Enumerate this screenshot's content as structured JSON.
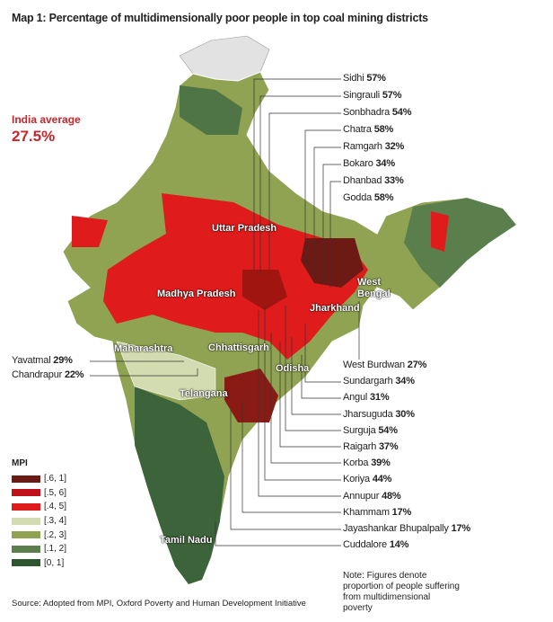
{
  "title": "Map 1: Percentage of multidimensionally poor people in top coal mining districts",
  "india_average": {
    "label": "India average",
    "value": "27.5%"
  },
  "legend": {
    "title": "MPI",
    "items": [
      {
        "label": "[.6, 1]",
        "color": "#6e1a14"
      },
      {
        "label": "[.5, 6]",
        "color": "#c0111a"
      },
      {
        "label": "[.4, 5]",
        "color": "#e01b1b"
      },
      {
        "label": "[.3, 4]",
        "color": "#d3dcb0"
      },
      {
        "label": "[.2, 3]",
        "color": "#8fa352"
      },
      {
        "label": "[.1, 2]",
        "color": "#5a7f4c"
      },
      {
        "label": "[0, 1]",
        "color": "#2f5430"
      }
    ]
  },
  "states": [
    "Uttar Pradesh",
    "Madhya Pradesh",
    "Maharashtra",
    "Chhattisgarh",
    "Odisha",
    "Telangana",
    "Tamil Nadu",
    "West Bengal",
    "Jharkhand"
  ],
  "districts_upper": [
    {
      "name": "Sidhi",
      "value": "57%"
    },
    {
      "name": "Singrauli",
      "value": "57%"
    },
    {
      "name": "Sonbhadra",
      "value": "54%"
    },
    {
      "name": "Chatra",
      "value": "58%"
    },
    {
      "name": "Ramgarh",
      "value": "32%"
    },
    {
      "name": "Bokaro",
      "value": "34%"
    },
    {
      "name": "Dhanbad",
      "value": "33%"
    },
    {
      "name": "Godda",
      "value": "58%"
    }
  ],
  "districts_lower": [
    {
      "name": "West Burdwan",
      "value": "27%"
    },
    {
      "name": "Sundargarh",
      "value": "34%"
    },
    {
      "name": "Angul",
      "value": "31%"
    },
    {
      "name": "Jharsuguda",
      "value": "30%"
    },
    {
      "name": "Surguja",
      "value": "54%"
    },
    {
      "name": "Raigarh",
      "value": "37%"
    },
    {
      "name": "Korba",
      "value": "39%"
    },
    {
      "name": "Koriya",
      "value": "44%"
    },
    {
      "name": "Annupur",
      "value": "48%"
    },
    {
      "name": "Khammam",
      "value": "17%"
    },
    {
      "name": "Jayashankar Bhupalpally",
      "value": "17%"
    },
    {
      "name": "Cuddalore",
      "value": "14%"
    }
  ],
  "districts_left": [
    {
      "name": "Yavatmal",
      "value": "29%"
    },
    {
      "name": "Chandrapur",
      "value": "22%"
    }
  ],
  "note": "Note: Figures denote proportion of people suffering from multidimensional poverty",
  "source": "Source: Adopted from MPI, Oxford Poverty and Human Development Initiative"
}
